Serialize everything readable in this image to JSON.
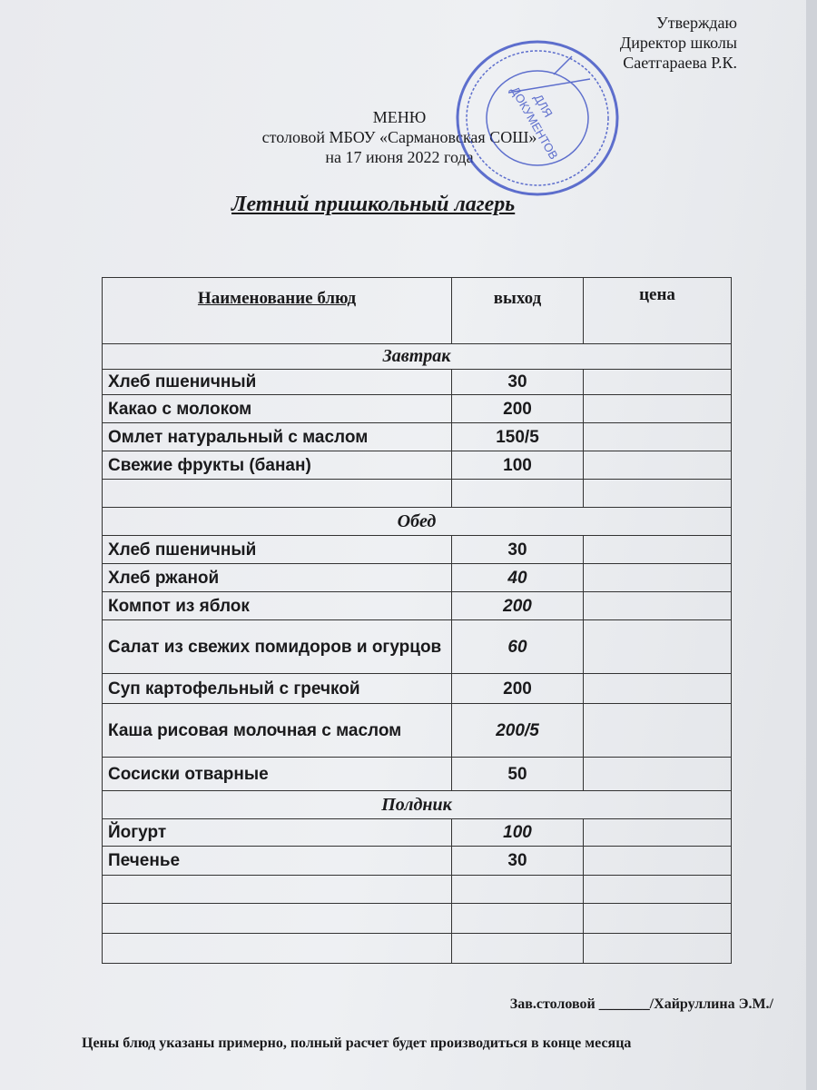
{
  "approval": {
    "line1": "Утверждаю",
    "line2": "Директор школы",
    "line3": "Саетгараева Р.К."
  },
  "header": {
    "title": "МЕНЮ",
    "subtitle": "столовой МБОУ «Сармановская СОШ»",
    "date": "на 17 июня  2022 года"
  },
  "camp_title": "Летний пришкольный лагерь",
  "stamp": {
    "center_text": "ДЛЯ ДОКУМЕНТОВ",
    "color": "#3a4fc4"
  },
  "table": {
    "columns": {
      "name": "Наименование блюд",
      "output": "выход",
      "price": "цена"
    },
    "sections": [
      {
        "title": "Завтрак",
        "rows": [
          {
            "name": "Хлеб пшеничный",
            "output": "30",
            "price": ""
          },
          {
            "name": "Какао с молоком",
            "output": "200",
            "price": ""
          },
          {
            "name": "Омлет натуральный с маслом",
            "output": "150/5",
            "price": ""
          },
          {
            "name": "Свежие фрукты (банан)",
            "output": "100",
            "price": ""
          },
          {
            "name": "",
            "output": "",
            "price": ""
          }
        ]
      },
      {
        "title": "Обед",
        "rows": [
          {
            "name": "Хлеб пшеничный",
            "output": "30",
            "price": ""
          },
          {
            "name": "Хлеб ржаной",
            "output": "40",
            "price": ""
          },
          {
            "name": "Компот из яблок",
            "output": "200",
            "price": ""
          },
          {
            "name": "Салат из свежих помидоров  и огурцов",
            "output": "60",
            "price": ""
          },
          {
            "name": "Суп картофельный с гречкой",
            "output": "200",
            "price": ""
          },
          {
            "name": "Каша рисовая молочная с маслом",
            "output": "200/5",
            "price": ""
          },
          {
            "name": "Сосиски отварные",
            "output": "50",
            "price": ""
          }
        ]
      },
      {
        "title": "Полдник",
        "rows": [
          {
            "name": "Йогурт",
            "output": "100",
            "price": ""
          },
          {
            "name": "Печенье",
            "output": "30",
            "price": ""
          },
          {
            "name": "",
            "output": "",
            "price": ""
          },
          {
            "name": "",
            "output": "",
            "price": ""
          },
          {
            "name": "",
            "output": "",
            "price": ""
          }
        ]
      }
    ]
  },
  "signature": {
    "role": "Зав.столовой",
    "blank": "_______",
    "name": "/Хайруллина Э.М./"
  },
  "note": "Цены блюд указаны примерно,  полный расчет будет производиться в конце месяца"
}
